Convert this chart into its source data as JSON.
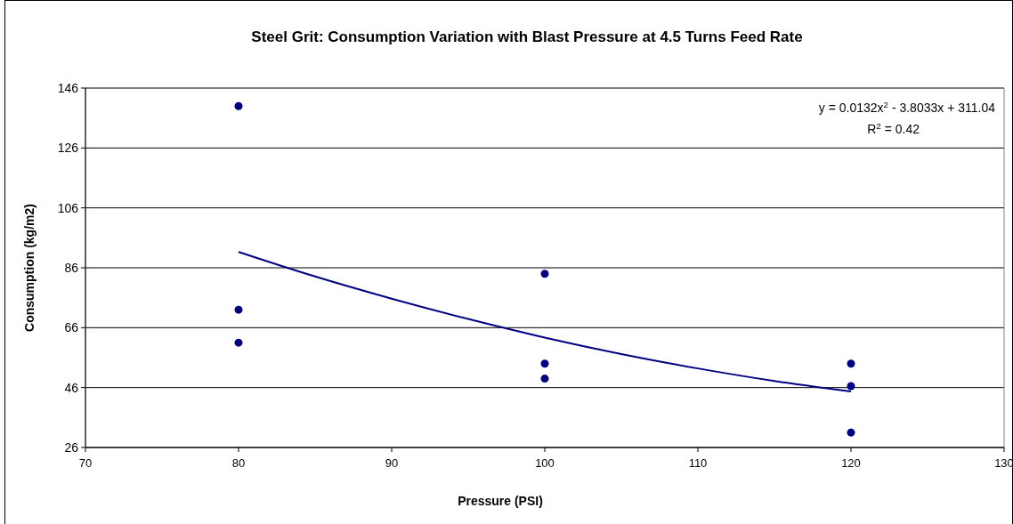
{
  "chart_data": {
    "type": "scatter",
    "title": "Steel Grit: Consumption Variation with Blast Pressure at 4.5 Turns Feed Rate",
    "xlabel": "Pressure (PSI)",
    "ylabel": "Consumption (kg/m2)",
    "xlim": [
      70,
      130
    ],
    "xticks": [
      70,
      80,
      90,
      100,
      110,
      120,
      130
    ],
    "ylim": [
      26,
      146
    ],
    "yticks": [
      26,
      46,
      66,
      86,
      106,
      126,
      146
    ],
    "grid": "y",
    "marker": "circle",
    "annotations": [
      "y = 0.0132x$^{2}$ - 3.8033x + 311.04",
      "R$^{2}$ = 0.42"
    ],
    "series": [
      {
        "color": "#000080",
        "x": [
          80,
          80,
          80,
          100,
          100,
          100,
          120,
          120,
          120
        ],
        "values": [
          140,
          72,
          61,
          84,
          54,
          49,
          54,
          46.5,
          31
        ]
      },
      {
        "type": "line",
        "color": "#000080",
        "marker": "none",
        "x": [
          80,
          85,
          90,
          95,
          100,
          105,
          110,
          115,
          120
        ],
        "values": [
          91.3,
          83.1,
          75.7,
          68.9,
          62.7,
          57.2,
          52.4,
          48.2,
          44.7
        ]
      }
    ]
  }
}
